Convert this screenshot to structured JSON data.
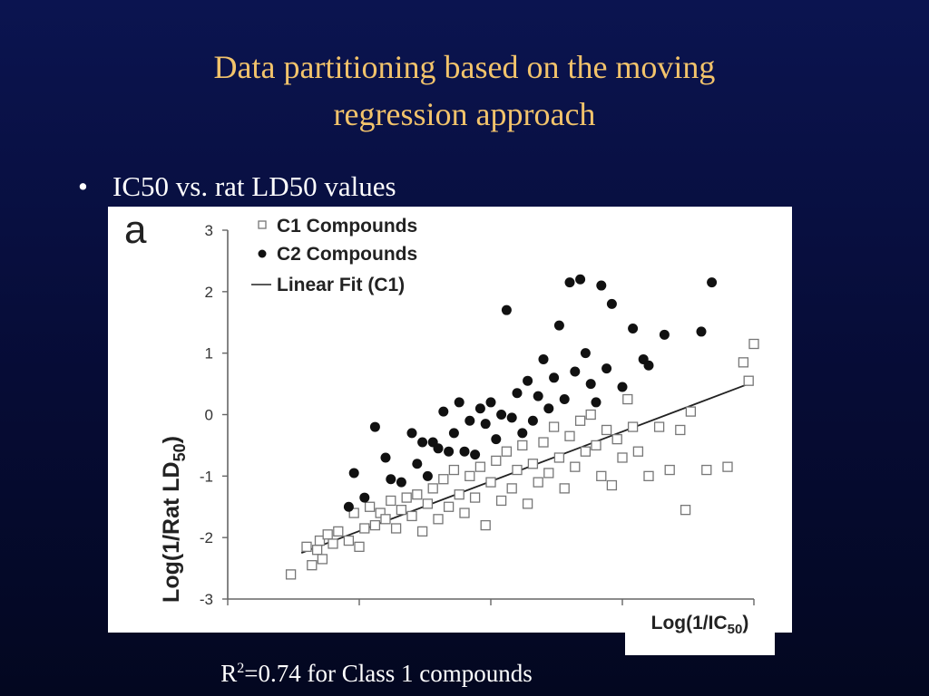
{
  "slide": {
    "title_line1": "Data partitioning based on the moving",
    "title_line2": "regression approach",
    "bullet_symbol": "•",
    "bullet_text": "IC50 vs. rat LD50 values",
    "caption_r": "R",
    "caption_sup": "2",
    "caption_rest": "=0.74 for Class 1 compounds",
    "title_color": "#f2c36b"
  },
  "chart_data": {
    "type": "scatter",
    "panel_label": "a",
    "ylabel_main": "Log(1/Rat LD",
    "ylabel_sub": "50",
    "ylabel_end": ")",
    "xlabel_main": "Log(1/IC",
    "xlabel_sub": "50",
    "xlabel_end": ")",
    "ylim": [
      -3,
      3
    ],
    "yticks": [
      3,
      2,
      1,
      0,
      -1,
      -2,
      -3
    ],
    "ytick_labels": [
      "3",
      "2",
      "1",
      "0",
      "-1",
      "-2",
      "-3"
    ],
    "xlim": [
      0,
      10
    ],
    "xticks": [
      0,
      2.5,
      5,
      7.5,
      10
    ],
    "legend_position": "top-left",
    "grid": false,
    "series": [
      {
        "name": "C1 Compounds",
        "marker": "open-square",
        "color": "#777777",
        "points": [
          [
            1.2,
            -2.6
          ],
          [
            1.5,
            -2.15
          ],
          [
            1.6,
            -2.45
          ],
          [
            1.7,
            -2.2
          ],
          [
            1.75,
            -2.05
          ],
          [
            1.8,
            -2.35
          ],
          [
            1.9,
            -1.95
          ],
          [
            2.0,
            -2.1
          ],
          [
            2.1,
            -1.9
          ],
          [
            2.3,
            -2.05
          ],
          [
            2.4,
            -1.6
          ],
          [
            2.5,
            -2.15
          ],
          [
            2.6,
            -1.85
          ],
          [
            2.7,
            -1.5
          ],
          [
            2.8,
            -1.8
          ],
          [
            2.9,
            -1.6
          ],
          [
            3.0,
            -1.7
          ],
          [
            3.1,
            -1.4
          ],
          [
            3.2,
            -1.85
          ],
          [
            3.3,
            -1.55
          ],
          [
            3.4,
            -1.35
          ],
          [
            3.5,
            -1.65
          ],
          [
            3.6,
            -1.3
          ],
          [
            3.7,
            -1.9
          ],
          [
            3.8,
            -1.45
          ],
          [
            3.9,
            -1.2
          ],
          [
            4.0,
            -1.7
          ],
          [
            4.1,
            -1.05
          ],
          [
            4.2,
            -1.5
          ],
          [
            4.3,
            -0.9
          ],
          [
            4.4,
            -1.3
          ],
          [
            4.5,
            -1.6
          ],
          [
            4.6,
            -1.0
          ],
          [
            4.7,
            -1.35
          ],
          [
            4.8,
            -0.85
          ],
          [
            4.9,
            -1.8
          ],
          [
            5.0,
            -1.1
          ],
          [
            5.1,
            -0.75
          ],
          [
            5.2,
            -1.4
          ],
          [
            5.3,
            -0.6
          ],
          [
            5.4,
            -1.2
          ],
          [
            5.5,
            -0.9
          ],
          [
            5.6,
            -0.5
          ],
          [
            5.7,
            -1.45
          ],
          [
            5.8,
            -0.8
          ],
          [
            5.9,
            -1.1
          ],
          [
            6.0,
            -0.45
          ],
          [
            6.1,
            -0.95
          ],
          [
            6.2,
            -0.2
          ],
          [
            6.3,
            -0.7
          ],
          [
            6.4,
            -1.2
          ],
          [
            6.5,
            -0.35
          ],
          [
            6.6,
            -0.85
          ],
          [
            6.7,
            -0.1
          ],
          [
            6.8,
            -0.6
          ],
          [
            6.9,
            0.0
          ],
          [
            7.0,
            -0.5
          ],
          [
            7.1,
            -1.0
          ],
          [
            7.2,
            -0.25
          ],
          [
            7.3,
            -1.15
          ],
          [
            7.4,
            -0.4
          ],
          [
            7.5,
            -0.7
          ],
          [
            7.6,
            0.25
          ],
          [
            7.7,
            -0.2
          ],
          [
            7.8,
            -0.6
          ],
          [
            8.0,
            -1.0
          ],
          [
            8.2,
            -0.2
          ],
          [
            8.4,
            -0.9
          ],
          [
            8.6,
            -0.25
          ],
          [
            8.7,
            -1.55
          ],
          [
            8.8,
            0.05
          ],
          [
            9.1,
            -0.9
          ],
          [
            9.5,
            -0.85
          ],
          [
            9.8,
            0.85
          ],
          [
            9.9,
            0.55
          ],
          [
            10.0,
            1.15
          ]
        ]
      },
      {
        "name": "C2 Compounds",
        "marker": "filled-circle",
        "color": "#111111",
        "points": [
          [
            2.3,
            -1.5
          ],
          [
            2.4,
            -0.95
          ],
          [
            2.6,
            -1.35
          ],
          [
            2.8,
            -0.2
          ],
          [
            3.0,
            -0.7
          ],
          [
            3.1,
            -1.05
          ],
          [
            3.3,
            -1.1
          ],
          [
            3.5,
            -0.3
          ],
          [
            3.6,
            -0.8
          ],
          [
            3.7,
            -0.45
          ],
          [
            3.8,
            -1.0
          ],
          [
            3.9,
            -0.45
          ],
          [
            4.0,
            -0.55
          ],
          [
            4.1,
            0.05
          ],
          [
            4.2,
            -0.6
          ],
          [
            4.3,
            -0.3
          ],
          [
            4.4,
            0.2
          ],
          [
            4.5,
            -0.6
          ],
          [
            4.6,
            -0.1
          ],
          [
            4.7,
            -0.65
          ],
          [
            4.8,
            0.1
          ],
          [
            4.9,
            -0.15
          ],
          [
            5.0,
            0.2
          ],
          [
            5.1,
            -0.4
          ],
          [
            5.2,
            0.0
          ],
          [
            5.3,
            1.7
          ],
          [
            5.4,
            -0.05
          ],
          [
            5.5,
            0.35
          ],
          [
            5.6,
            -0.3
          ],
          [
            5.7,
            0.55
          ],
          [
            5.8,
            -0.1
          ],
          [
            5.9,
            0.3
          ],
          [
            6.0,
            0.9
          ],
          [
            6.1,
            0.1
          ],
          [
            6.2,
            0.6
          ],
          [
            6.3,
            1.45
          ],
          [
            6.4,
            0.25
          ],
          [
            6.5,
            2.15
          ],
          [
            6.6,
            0.7
          ],
          [
            6.7,
            2.2
          ],
          [
            6.8,
            1.0
          ],
          [
            6.9,
            0.5
          ],
          [
            7.0,
            0.2
          ],
          [
            7.1,
            2.1
          ],
          [
            7.2,
            0.75
          ],
          [
            7.3,
            1.8
          ],
          [
            7.5,
            0.45
          ],
          [
            7.7,
            1.4
          ],
          [
            7.9,
            0.9
          ],
          [
            8.0,
            0.8
          ],
          [
            8.3,
            1.3
          ],
          [
            9.0,
            1.35
          ],
          [
            9.2,
            2.15
          ]
        ]
      }
    ],
    "fit": {
      "name": "Linear Fit (C1)",
      "x": [
        1.4,
        9.9
      ],
      "y": [
        -2.25,
        0.5
      ]
    }
  }
}
